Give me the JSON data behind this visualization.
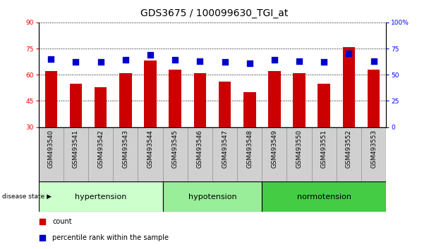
{
  "title": "GDS3675 / 100099630_TGI_at",
  "samples": [
    "GSM493540",
    "GSM493541",
    "GSM493542",
    "GSM493543",
    "GSM493544",
    "GSM493545",
    "GSM493546",
    "GSM493547",
    "GSM493548",
    "GSM493549",
    "GSM493550",
    "GSM493551",
    "GSM493552",
    "GSM493553"
  ],
  "counts": [
    62,
    55,
    53,
    61,
    68,
    63,
    61,
    56,
    50,
    62,
    61,
    55,
    76,
    63
  ],
  "percentiles": [
    65,
    62,
    62,
    64,
    69,
    64,
    63,
    62,
    61,
    64,
    63,
    62,
    70,
    63
  ],
  "groups": [
    {
      "label": "hypertension",
      "start": 0,
      "end": 5,
      "color": "#ccffcc"
    },
    {
      "label": "hypotension",
      "start": 5,
      "end": 9,
      "color": "#99ee99"
    },
    {
      "label": "normotension",
      "start": 9,
      "end": 14,
      "color": "#44cc44"
    }
  ],
  "ylim_left": [
    30,
    90
  ],
  "ylim_right": [
    0,
    100
  ],
  "yticks_left": [
    30,
    45,
    60,
    75,
    90
  ],
  "yticks_right": [
    0,
    25,
    50,
    75,
    100
  ],
  "bar_color": "#cc0000",
  "dot_color": "#0000cc",
  "bar_width": 0.5,
  "dot_size": 30,
  "title_fontsize": 10,
  "tick_fontsize": 6.5,
  "group_label_fontsize": 8,
  "legend_fontsize": 7
}
